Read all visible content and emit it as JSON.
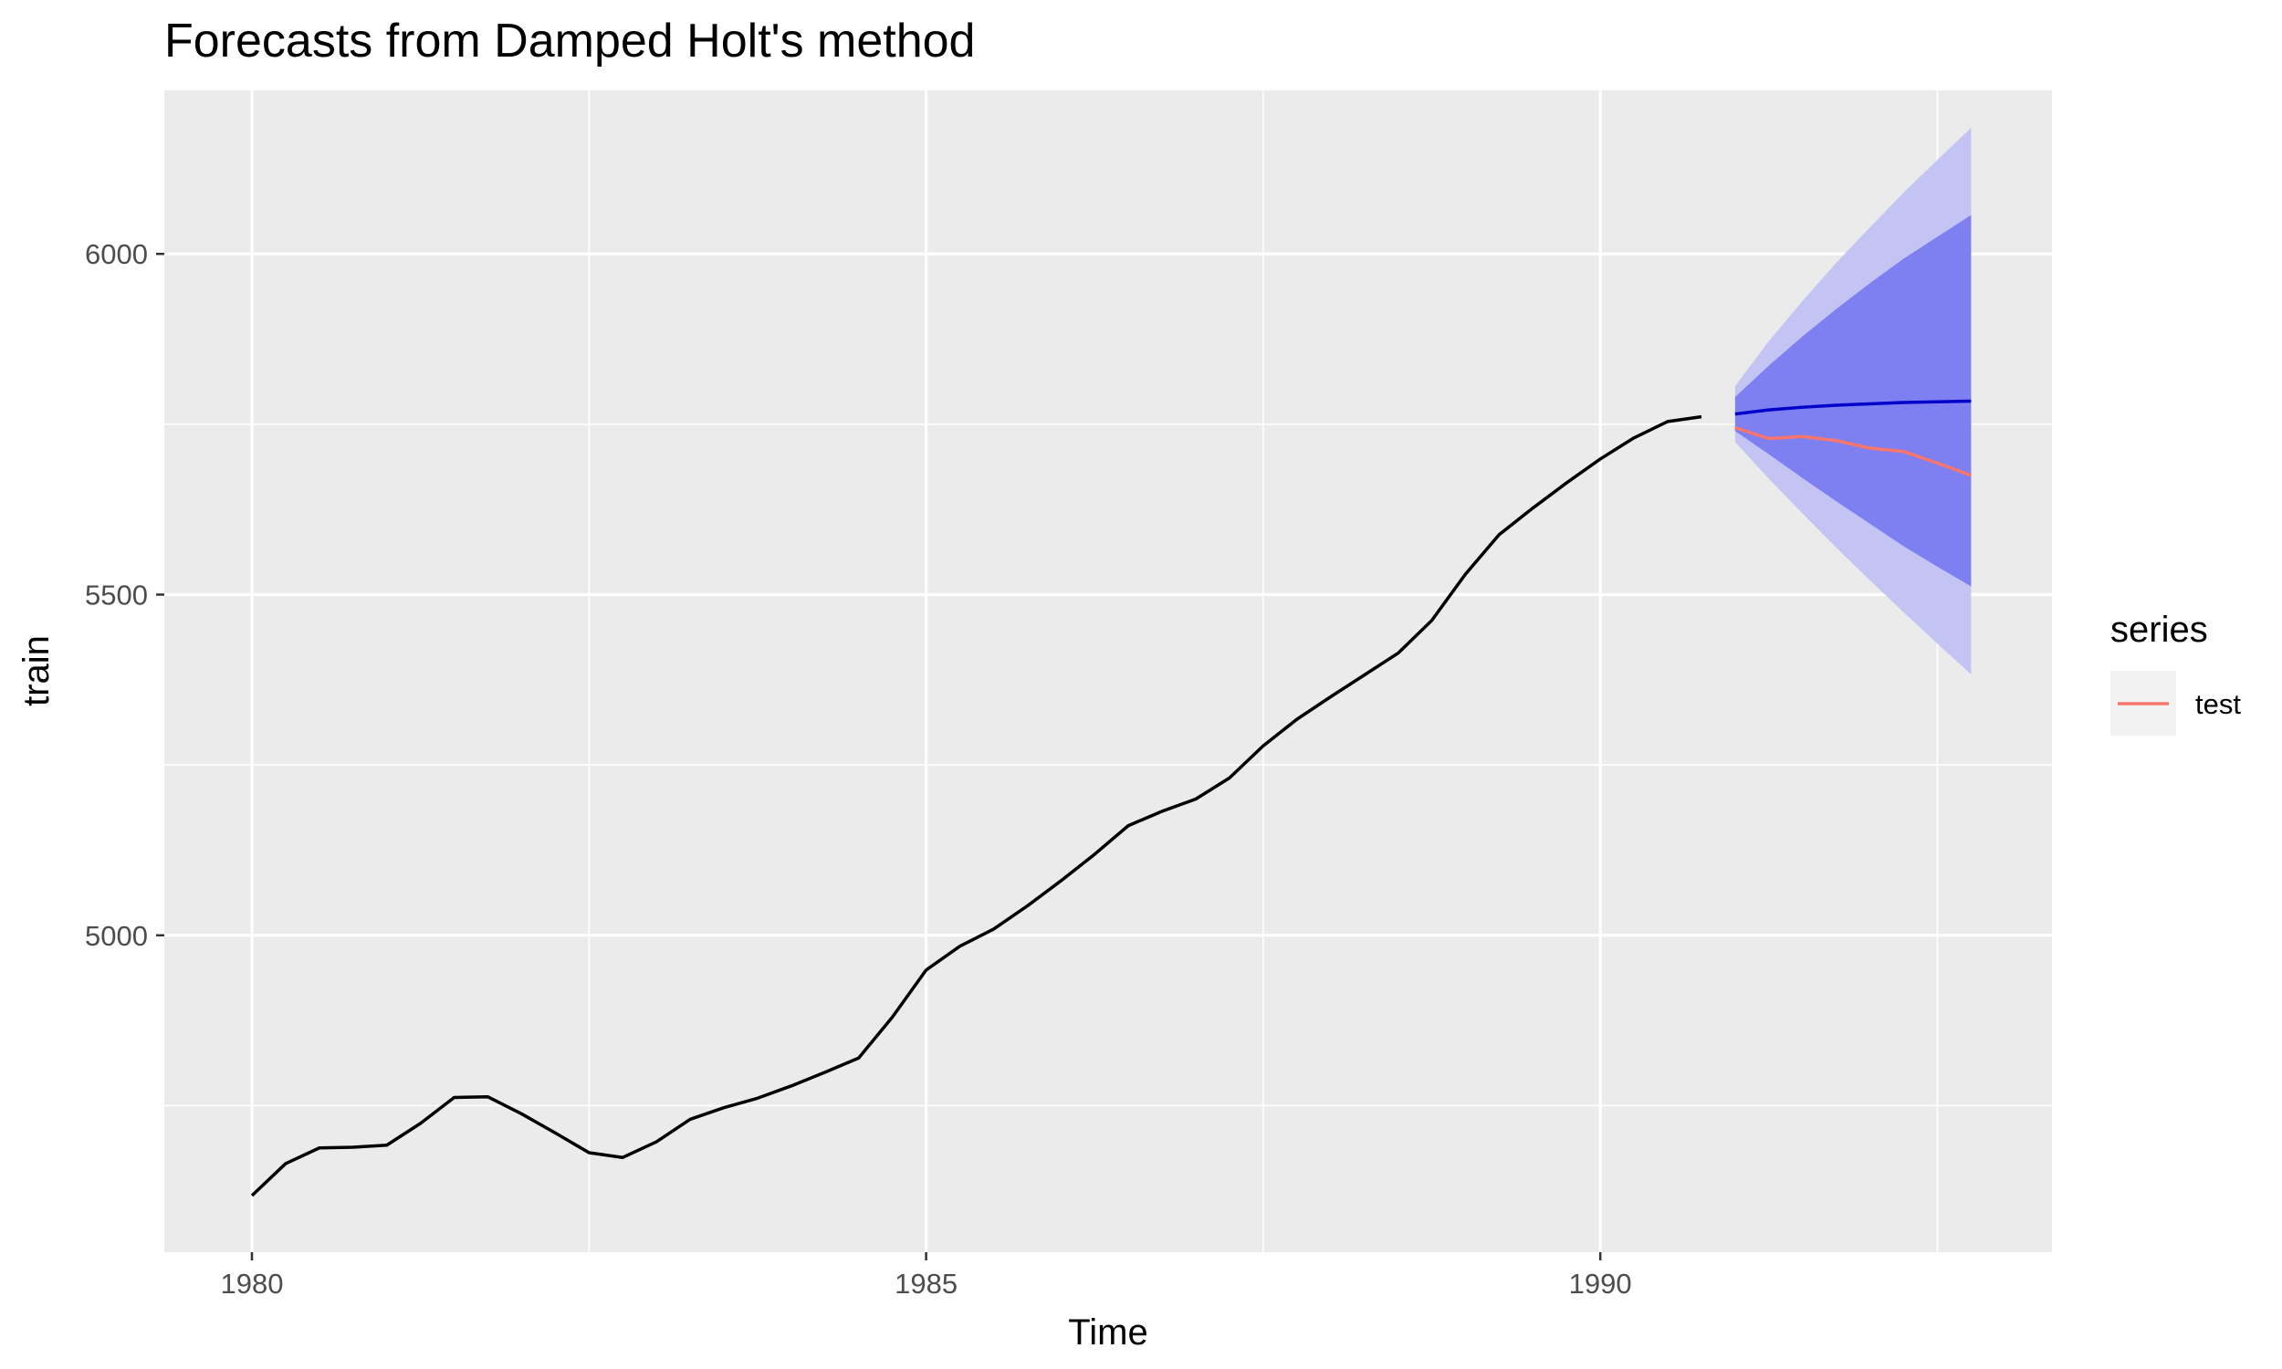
{
  "chart_data": {
    "type": "line",
    "title": "Forecasts from Damped Holt's method",
    "xlabel": "Time",
    "ylabel": "train",
    "xlim": [
      1979.35,
      1993.35
    ],
    "ylim": [
      4535,
      6240
    ],
    "x_ticks": [
      1980,
      1985,
      1990
    ],
    "x_tick_labels": [
      "1980",
      "1985",
      "1990"
    ],
    "x_minor_ticks": [
      1982.5,
      1987.5,
      1992.5
    ],
    "y_ticks": [
      5000,
      5500,
      6000
    ],
    "y_tick_labels": [
      "5000",
      "5500",
      "6000"
    ],
    "y_minor_ticks": [
      4750,
      5250,
      5750
    ],
    "grid": true,
    "legend": {
      "title": "series",
      "position": "right",
      "entries": [
        {
          "label": "test",
          "color": "#f8766d"
        }
      ]
    },
    "colors": {
      "panel": "#ebebeb",
      "grid": "#ffffff",
      "train": "#000000",
      "forecast": "#0000cc",
      "pi80": "#7e7ff0",
      "pi95": "#c4c4f4",
      "test": "#f8766d"
    },
    "series": [
      {
        "role": "train",
        "x": [
          1980,
          1980.25,
          1980.5,
          1980.75,
          1981,
          1981.25,
          1981.5,
          1981.75,
          1982,
          1982.25,
          1982.5,
          1982.75,
          1983,
          1983.25,
          1983.5,
          1983.75,
          1984,
          1984.25,
          1984.5,
          1984.75,
          1985,
          1985.25,
          1985.5,
          1985.75,
          1986,
          1986.25,
          1986.5,
          1986.75,
          1987,
          1987.25,
          1987.5,
          1987.75,
          1988,
          1988.25,
          1988.5,
          1988.75,
          1989,
          1989.25,
          1989.5,
          1989.75,
          1990,
          1990.25,
          1990.5,
          1990.75
        ],
        "values": [
          4618,
          4665,
          4688,
          4689,
          4692,
          4724,
          4762,
          4763,
          4738,
          4710,
          4681,
          4674,
          4697,
          4730,
          4747,
          4761,
          4779,
          4799,
          4820,
          4880,
          4949,
          4984,
          5009,
          5043,
          5080,
          5119,
          5161,
          5182,
          5200,
          5231,
          5278,
          5317,
          5350,
          5382,
          5414,
          5462,
          5530,
          5588,
          5627,
          5664,
          5699,
          5730,
          5754,
          5761
        ]
      },
      {
        "role": "forecast",
        "x": [
          1991,
          1991.25,
          1991.5,
          1991.75,
          1992,
          1992.25,
          1992.5,
          1992.75
        ],
        "values": [
          5765,
          5771,
          5775,
          5778,
          5780,
          5782,
          5783,
          5784
        ],
        "pi80_lower": [
          5740,
          5706,
          5671,
          5637,
          5604,
          5571,
          5541,
          5512
        ],
        "pi80_upper": [
          5790,
          5836,
          5879,
          5919,
          5957,
          5993,
          6025,
          6057
        ],
        "pi95_lower": [
          5724,
          5670,
          5619,
          5569,
          5521,
          5474,
          5428,
          5383
        ],
        "pi95_upper": [
          5806,
          5872,
          5931,
          5987,
          6039,
          6090,
          6138,
          6185
        ]
      },
      {
        "name": "test",
        "role": "test",
        "x": [
          1991,
          1991.25,
          1991.5,
          1991.75,
          1992,
          1992.25,
          1992.5,
          1992.75
        ],
        "values": [
          5745,
          5729,
          5732,
          5726,
          5715,
          5710,
          5693,
          5675
        ]
      }
    ]
  }
}
